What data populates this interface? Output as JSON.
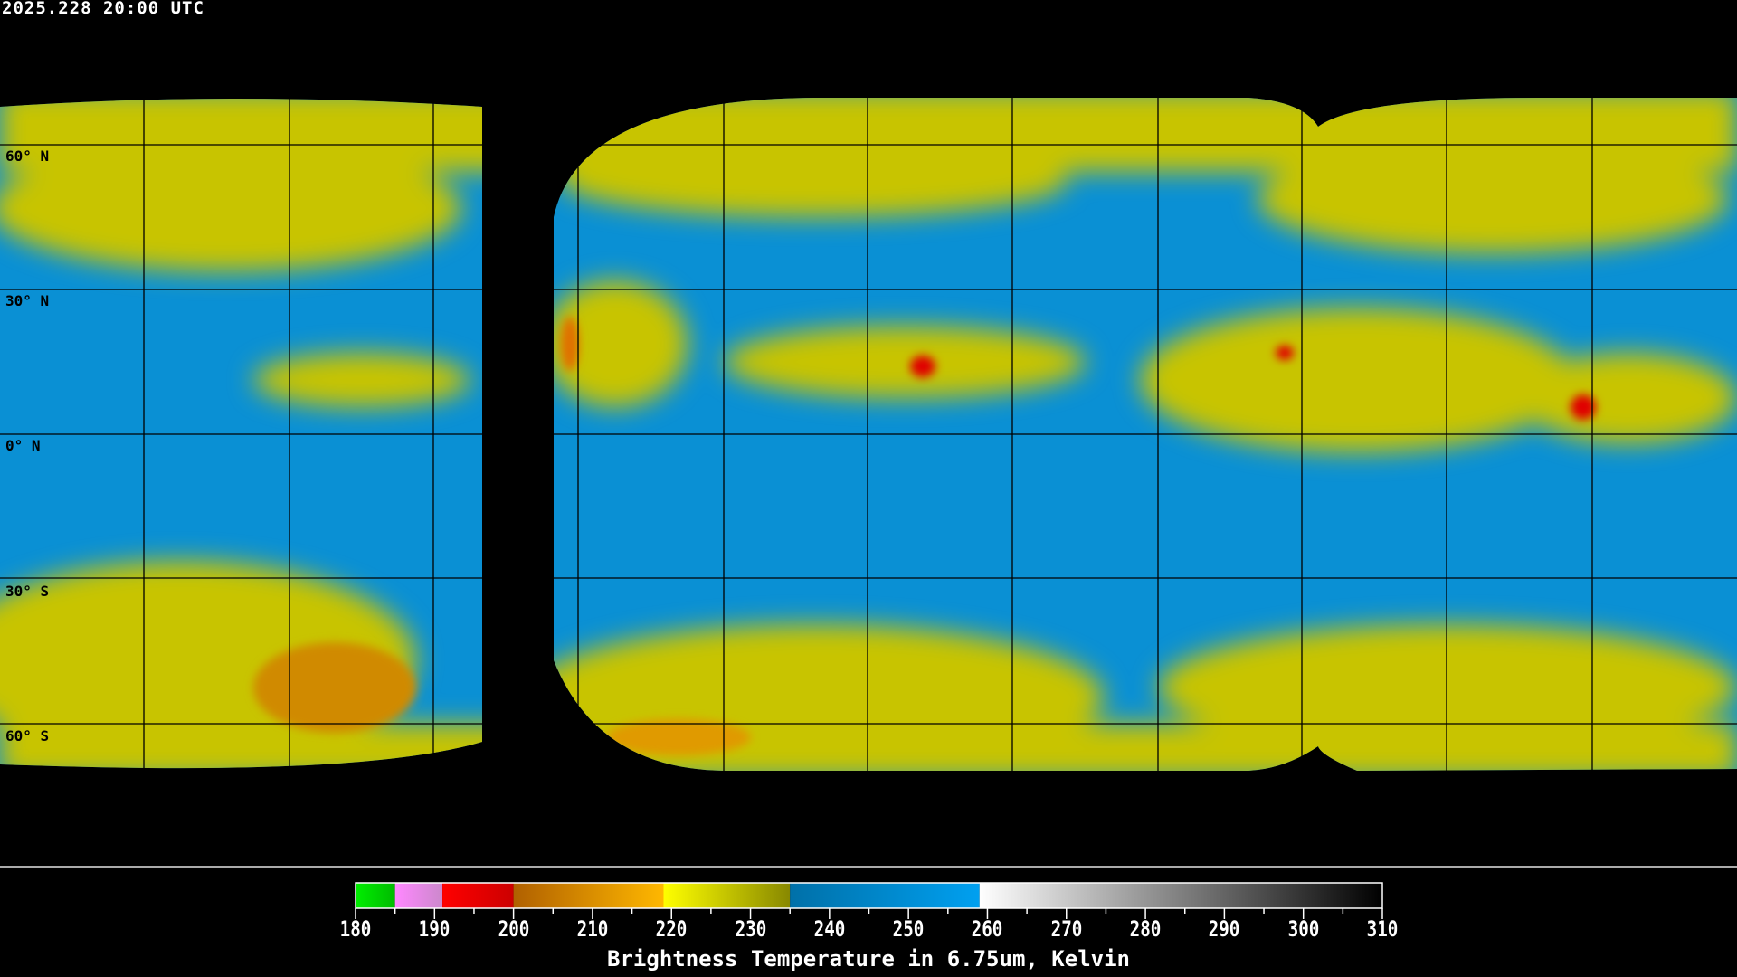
{
  "timestamp": "2025.228 20:00 UTC",
  "latitude_labels": [
    "60° N",
    "30° N",
    "0° N",
    "30° S",
    "60° S"
  ],
  "colorbar": {
    "title": "Brightness Temperature in 6.75um, Kelvin",
    "range": [
      180,
      310
    ],
    "tick_labels": [
      "180",
      "190",
      "200",
      "210",
      "220",
      "230",
      "240",
      "250",
      "260",
      "270",
      "280",
      "290",
      "300",
      "310"
    ],
    "segments": [
      {
        "from": 180,
        "to": 185,
        "colors": [
          "#00ee00",
          "#00bb00"
        ]
      },
      {
        "from": 185,
        "to": 191,
        "colors": [
          "#ff88ff",
          "#cc88cc"
        ]
      },
      {
        "from": 191,
        "to": 200,
        "colors": [
          "#ff0000",
          "#cc0000"
        ]
      },
      {
        "from": 200,
        "to": 219,
        "colors": [
          "#b06000",
          "#ffb800"
        ]
      },
      {
        "from": 219,
        "to": 235,
        "colors": [
          "#ffff00",
          "#888800"
        ]
      },
      {
        "from": 235,
        "to": 259,
        "colors": [
          "#0070a8",
          "#00a0f0"
        ]
      },
      {
        "from": 259,
        "to": 310,
        "colors": [
          "#ffffff",
          "#000000"
        ]
      }
    ]
  },
  "colors": {
    "water_vapor_dry": "#0090d8",
    "water_vapor_moist": "#d8d800",
    "cold_cloud": "#e09000",
    "very_cold": "#e00000"
  }
}
